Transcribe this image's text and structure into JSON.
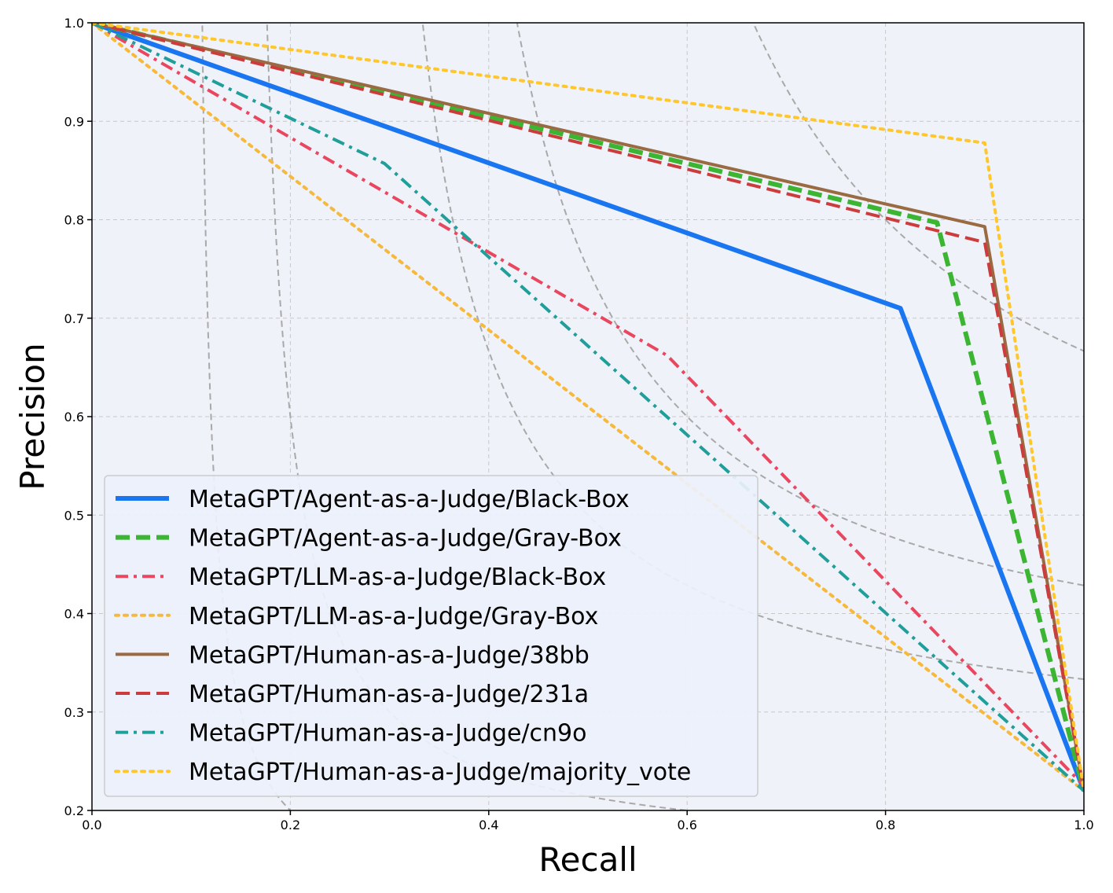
{
  "chart_data": {
    "type": "line",
    "title": "",
    "xlabel": "Recall",
    "ylabel": "Precision",
    "xlim": [
      0.0,
      1.0
    ],
    "ylim": [
      0.2,
      1.0
    ],
    "xticks": [
      "0.0",
      "0.2",
      "0.4",
      "0.6",
      "0.8",
      "1.0"
    ],
    "yticks": [
      "0.2",
      "0.3",
      "0.4",
      "0.5",
      "0.6",
      "0.7",
      "0.8",
      "0.9",
      "1.0"
    ],
    "grid": true,
    "legend_position": "lower-left",
    "iso_f1_curves": [
      0.2,
      0.3,
      0.5,
      0.6,
      0.8
    ],
    "series": [
      {
        "name": "MetaGPT/Agent-as-a-Judge/Black-Box",
        "color": "#1a76f0",
        "style": "solid",
        "width": 6,
        "x": [
          0.0,
          0.815,
          1.0
        ],
        "y": [
          1.0,
          0.71,
          0.22
        ]
      },
      {
        "name": "MetaGPT/Agent-as-a-Judge/Gray-Box",
        "color": "#3bb532",
        "style": "dashed",
        "width": 6,
        "x": [
          0.0,
          0.852,
          1.0
        ],
        "y": [
          1.0,
          0.797,
          0.22
        ]
      },
      {
        "name": "MetaGPT/LLM-as-a-Judge/Black-Box",
        "color": "#e9475f",
        "style": "dashdot",
        "width": 4,
        "x": [
          0.0,
          0.58,
          1.0
        ],
        "y": [
          1.0,
          0.662,
          0.225
        ]
      },
      {
        "name": "MetaGPT/LLM-as-a-Judge/Gray-Box",
        "color": "#f6b93b",
        "style": "dotted",
        "width": 4,
        "x": [
          0.0,
          1.0
        ],
        "y": [
          1.0,
          0.22
        ]
      },
      {
        "name": "MetaGPT/Human-as-a-Judge/38bb",
        "color": "#9a6a42",
        "style": "solid",
        "width": 4,
        "x": [
          0.0,
          0.9,
          1.0
        ],
        "y": [
          1.0,
          0.793,
          0.22
        ]
      },
      {
        "name": "MetaGPT/Human-as-a-Judge/231a",
        "color": "#cc3c3c",
        "style": "dashed",
        "width": 4,
        "x": [
          0.0,
          0.9,
          1.0
        ],
        "y": [
          1.0,
          0.777,
          0.22
        ]
      },
      {
        "name": "MetaGPT/Human-as-a-Judge/cn9o",
        "color": "#1f9e9a",
        "style": "dashdot",
        "width": 4,
        "x": [
          0.0,
          0.295,
          1.0
        ],
        "y": [
          1.0,
          0.857,
          0.22
        ]
      },
      {
        "name": "MetaGPT/Human-as-a-Judge/majority_vote",
        "color": "#ffc72c",
        "style": "dotted",
        "width": 4,
        "x": [
          0.0,
          0.9,
          1.0
        ],
        "y": [
          1.0,
          0.878,
          0.22
        ]
      }
    ]
  }
}
